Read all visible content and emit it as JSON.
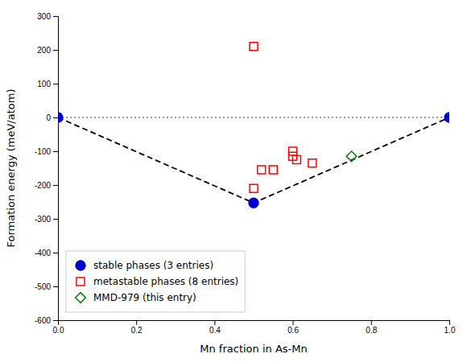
{
  "chart_data": {
    "type": "scatter",
    "xlabel": "Mn fraction in As-Mn",
    "ylabel": "Formation energy (meV/atom)",
    "xlim": [
      0.0,
      1.0
    ],
    "ylim": [
      -600,
      300
    ],
    "xticks": [
      {
        "value": 0.0,
        "label": "0.0"
      },
      0.2,
      0.4,
      0.6,
      0.8,
      {
        "value": 1.0,
        "label": "1.0"
      }
    ],
    "yticks": [
      -600,
      -500,
      -400,
      -300,
      -200,
      -100,
      0,
      100,
      200,
      300
    ],
    "legend": "lower left",
    "series": [
      {
        "name": "stable phases (3 entries)",
        "type": "scatter",
        "marker": "circle",
        "color": "#0000cc",
        "x": [
          0.0,
          0.5,
          1.0
        ],
        "values": [
          0.0,
          -253.0,
          0.0
        ]
      },
      {
        "name": "metastable phases (8 entries)",
        "type": "scatter",
        "marker": "square-open",
        "color": "red",
        "x": [
          0.5,
          0.5,
          0.52,
          0.55,
          0.6,
          0.6,
          0.61,
          0.65
        ],
        "values": [
          210.0,
          -210.0,
          -155.0,
          -155.0,
          -100.0,
          -115.0,
          -125.0,
          -135.0
        ]
      },
      {
        "name": "MMD-979 (this entry)",
        "type": "scatter",
        "marker": "diamond-open",
        "color": "green",
        "x": [
          0.75
        ],
        "values": [
          -115.0
        ]
      },
      {
        "type": "line",
        "line_style": "dashed",
        "color": "black",
        "x": [
          0.0,
          0.5,
          1.0
        ],
        "values": [
          0.0,
          -253.0,
          0.0
        ]
      },
      {
        "type": "line",
        "line_style": "dotted",
        "color": "gray",
        "x": [
          0.0,
          1.0
        ],
        "values": [
          0.0,
          0.0
        ]
      }
    ]
  }
}
